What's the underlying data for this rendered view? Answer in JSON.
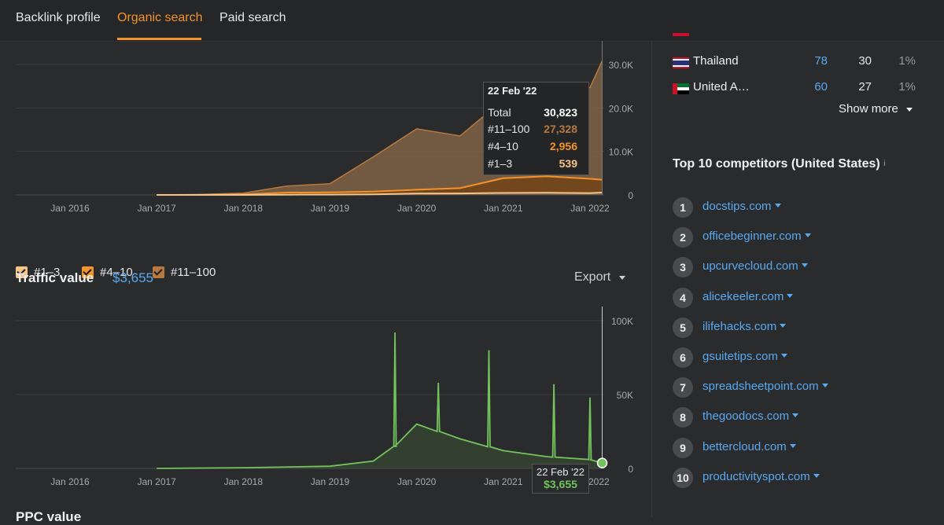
{
  "nav": {
    "tabs": [
      {
        "label": "Backlink profile",
        "active": false
      },
      {
        "label": "Organic search",
        "active": true
      },
      {
        "label": "Paid search",
        "active": false
      }
    ]
  },
  "colors": {
    "accent": "#f5922b",
    "link": "#58a9f0",
    "green": "#73c35c",
    "pos_1_3": "#f7c48a",
    "pos_4_10": "#f5922b",
    "pos_11_100": "#b7793f"
  },
  "keywords_chart": {
    "x_ticks": [
      "Jan 2016",
      "Jan 2017",
      "Jan 2018",
      "Jan 2019",
      "Jan 2020",
      "Jan 2021",
      "Jan 2022"
    ],
    "y_ticks": [
      "30.0K",
      "20.0K",
      "10.0K",
      "0"
    ],
    "legend": [
      {
        "label": "#1–3",
        "icon": "checkbox-checked"
      },
      {
        "label": "#4–10",
        "icon": "checkbox-checked"
      },
      {
        "label": "#11–100",
        "icon": "checkbox-checked"
      }
    ],
    "tooltip": {
      "date": "22 Feb '22",
      "rows": [
        {
          "label": "Total",
          "value": "30,823"
        },
        {
          "label": "#11–100",
          "value": "27,328"
        },
        {
          "label": "#4–10",
          "value": "2,956"
        },
        {
          "label": "#1–3",
          "value": "539"
        }
      ]
    }
  },
  "traffic_value": {
    "title": "Traffic value",
    "info": "i",
    "value": "$3,655",
    "export_label": "Export",
    "x_ticks": [
      "Jan 2016",
      "Jan 2017",
      "Jan 2018",
      "Jan 2019",
      "Jan 2020",
      "Jan 2021",
      "Jan 2022"
    ],
    "y_ticks": [
      "100K",
      "50K",
      "0"
    ],
    "tooltip": {
      "date": "22 Feb '22",
      "value": "$3,655"
    }
  },
  "next_section_title": "PPC value",
  "countries": [
    {
      "name": "Thailand",
      "keywords": "78",
      "traffic": "30",
      "share": "1%",
      "flag": "thailand-flag"
    },
    {
      "name": "United A…",
      "keywords": "60",
      "traffic": "27",
      "share": "1%",
      "flag": "uae-flag"
    }
  ],
  "show_more_label": "Show more",
  "competitors": {
    "title": "Top 10 competitors (United States)",
    "info": "i",
    "items": [
      {
        "rank": "1",
        "domain": "docstips.com"
      },
      {
        "rank": "2",
        "domain": "officebeginner.com"
      },
      {
        "rank": "3",
        "domain": "upcurvecloud.com"
      },
      {
        "rank": "4",
        "domain": "alicekeeler.com"
      },
      {
        "rank": "5",
        "domain": "ilifehacks.com"
      },
      {
        "rank": "6",
        "domain": "gsuitetips.com"
      },
      {
        "rank": "7",
        "domain": "spreadsheetpoint.com"
      },
      {
        "rank": "8",
        "domain": "thegoodocs.com"
      },
      {
        "rank": "9",
        "domain": "bettercloud.com"
      },
      {
        "rank": "10",
        "domain": "productivityspot.com"
      }
    ]
  },
  "chart_data": [
    {
      "type": "area",
      "x": [
        "Jan 2017",
        "Jul 2017",
        "Jan 2018",
        "Jul 2018",
        "Jan 2019",
        "Jul 2019",
        "Jan 2020",
        "Jul 2020",
        "Jan 2021",
        "Jul 2021",
        "Jan 2022",
        "22 Feb 2022"
      ],
      "series": [
        {
          "name": "#1–3",
          "values": [
            0,
            0,
            0,
            50,
            80,
            150,
            300,
            350,
            450,
            500,
            400,
            539
          ]
        },
        {
          "name": "#4–10",
          "values": [
            0,
            0,
            100,
            500,
            500,
            600,
            900,
            1200,
            3400,
            3800,
            3300,
            2956
          ]
        },
        {
          "name": "#11–100",
          "values": [
            0,
            100,
            300,
            1500,
            2000,
            8000,
            14000,
            12000,
            18000,
            20000,
            21000,
            27328
          ]
        }
      ],
      "total_at_last": 30823,
      "ylim": [
        0,
        30000
      ]
    },
    {
      "type": "line",
      "x": [
        "Jan 2017",
        "Jan 2018",
        "Jan 2019",
        "Jul 2019",
        "Oct 2019",
        "Jan 2020",
        "Jul 2020",
        "Jan 2021",
        "Jul 2021",
        "Jan 2022",
        "22 Feb 2022"
      ],
      "series": [
        {
          "name": "Traffic value",
          "values": [
            0,
            500,
            1500,
            5000,
            15000,
            30000,
            20000,
            12000,
            8000,
            6000,
            3655
          ]
        }
      ],
      "peaks": [
        {
          "x": "Oct 2019",
          "y": 92000
        },
        {
          "x": "Apr 2020",
          "y": 58000
        },
        {
          "x": "Nov 2020",
          "y": 80000
        },
        {
          "x": "Aug 2021",
          "y": 57000
        },
        {
          "x": "Jan 2022",
          "y": 48000
        }
      ],
      "ylim": [
        0,
        100000
      ]
    }
  ]
}
